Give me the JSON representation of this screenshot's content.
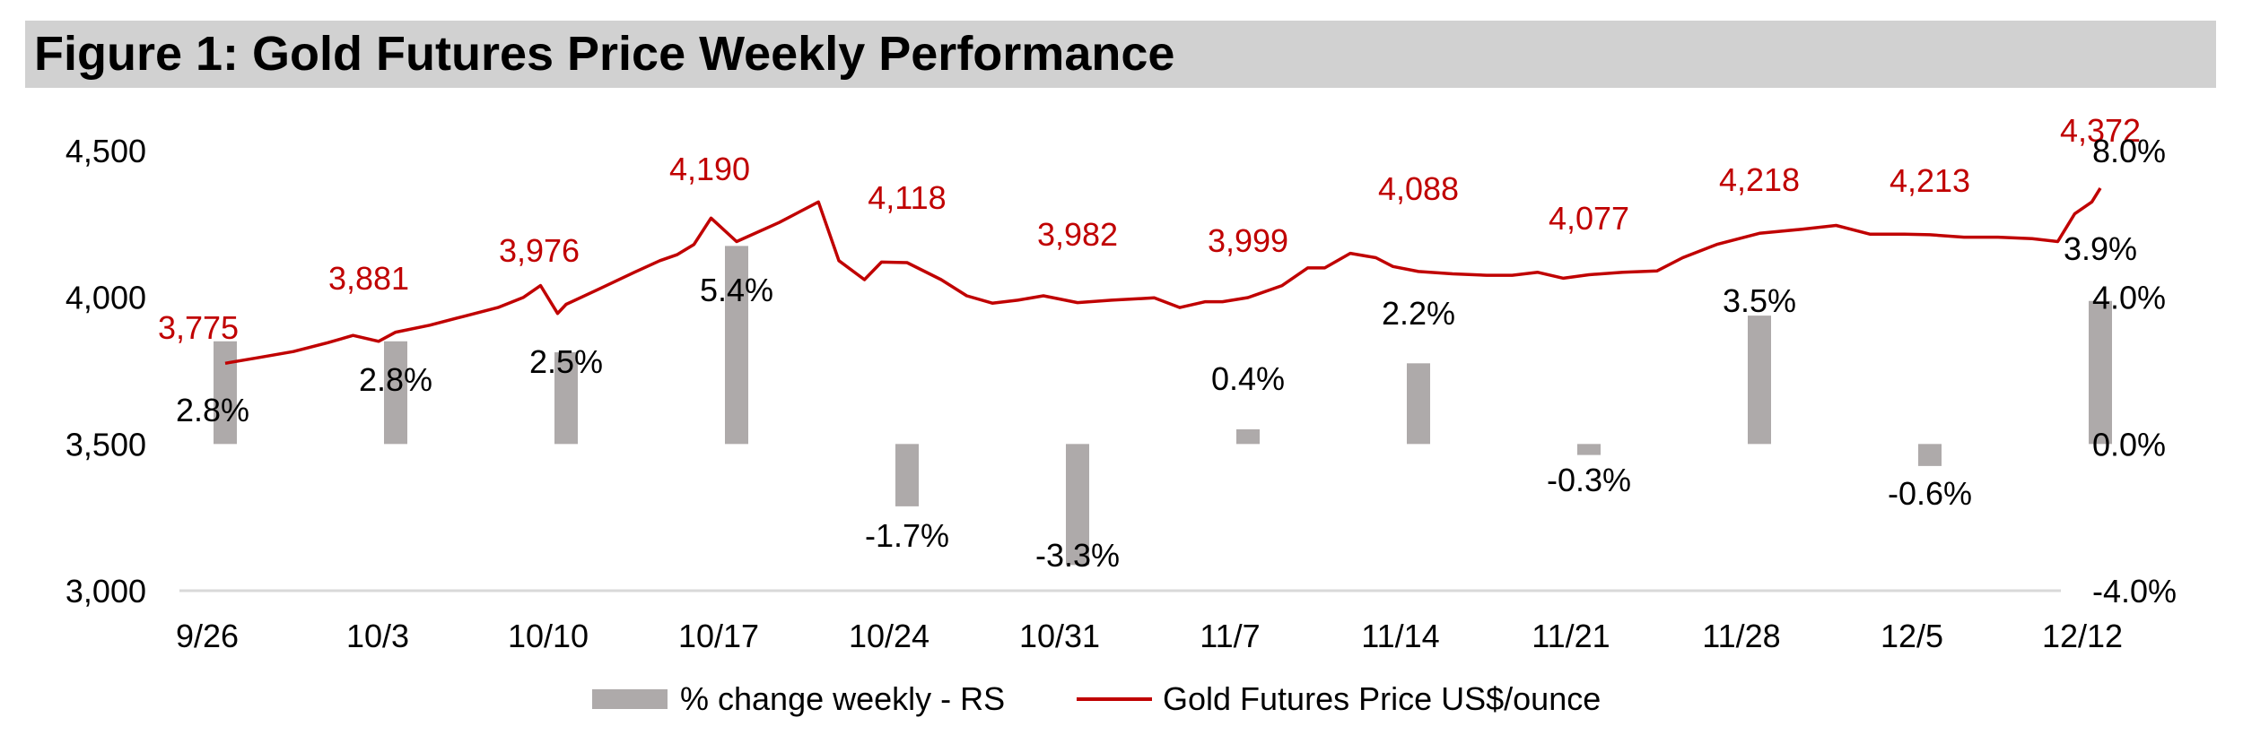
{
  "figure_title": "Figure 1: Gold Futures Price Weekly Performance",
  "chart_data": {
    "type": "bar+line",
    "categories": [
      "9/26",
      "10/3",
      "10/10",
      "10/17",
      "10/24",
      "10/31",
      "11/7",
      "11/14",
      "11/21",
      "11/28",
      "12/5",
      "12/12"
    ],
    "left_axis": {
      "ylim": [
        3000,
        4500
      ],
      "ticks": [
        3000,
        3500,
        4000,
        4500
      ],
      "tick_labels": [
        "3,000",
        "3,500",
        "4,000",
        "4,500"
      ]
    },
    "right_axis": {
      "ylim": [
        -4.0,
        8.0
      ],
      "ticks": [
        -4.0,
        0.0,
        4.0,
        8.0
      ],
      "tick_labels": [
        "-4.0%",
        "0.0%",
        "4.0%",
        "8.0%"
      ]
    },
    "series": [
      {
        "name": "% change weekly - RS",
        "kind": "bar",
        "axis": "right",
        "color": "#aeaaaa",
        "values": [
          2.8,
          2.8,
          2.5,
          5.4,
          -1.7,
          -3.3,
          0.4,
          2.2,
          -0.3,
          3.5,
          -0.6,
          3.9
        ],
        "labels": [
          "2.8%",
          "2.8%",
          "2.5%",
          "5.4%",
          "-1.7%",
          "-3.3%",
          "0.4%",
          "2.2%",
          "-0.3%",
          "3.5%",
          "-0.6%",
          "3.9%"
        ]
      },
      {
        "name": "Gold Futures Price US$/ounce",
        "kind": "line",
        "axis": "left",
        "color": "#c00000",
        "weekly_values": [
          3775,
          3881,
          3976,
          4190,
          4118,
          3982,
          3999,
          4088,
          4077,
          4218,
          4213,
          4372
        ],
        "weekly_labels": [
          "3,775",
          "3,881",
          "3,976",
          "4,190",
          "4,118",
          "3,982",
          "3,999",
          "4,088",
          "4,077",
          "4,218",
          "4,213",
          "4,372"
        ],
        "daily": [
          [
            0,
            3775
          ],
          [
            0.2,
            3795
          ],
          [
            0.4,
            3815
          ],
          [
            0.6,
            3845
          ],
          [
            0.75,
            3870
          ],
          [
            0.9,
            3850
          ],
          [
            1.0,
            3881
          ],
          [
            1.2,
            3905
          ],
          [
            1.4,
            3935
          ],
          [
            1.6,
            3965
          ],
          [
            1.75,
            4000
          ],
          [
            1.85,
            4040
          ],
          [
            1.95,
            3945
          ],
          [
            2.0,
            3976
          ],
          [
            2.2,
            4030
          ],
          [
            2.4,
            4085
          ],
          [
            2.55,
            4125
          ],
          [
            2.65,
            4145
          ],
          [
            2.75,
            4180
          ],
          [
            2.85,
            4270
          ],
          [
            3.0,
            4190
          ],
          [
            3.25,
            4255
          ],
          [
            3.48,
            4325
          ],
          [
            3.6,
            4125
          ],
          [
            3.75,
            4060
          ],
          [
            3.85,
            4120
          ],
          [
            4.0,
            4118
          ],
          [
            4.2,
            4060
          ],
          [
            4.35,
            4005
          ],
          [
            4.5,
            3980
          ],
          [
            4.65,
            3990
          ],
          [
            4.8,
            4005
          ],
          [
            5.0,
            3982
          ],
          [
            5.2,
            3990
          ],
          [
            5.45,
            3998
          ],
          [
            5.6,
            3965
          ],
          [
            5.75,
            3985
          ],
          [
            5.85,
            3985
          ],
          [
            6.0,
            3999
          ],
          [
            6.2,
            4040
          ],
          [
            6.35,
            4100
          ],
          [
            6.45,
            4100
          ],
          [
            6.6,
            4150
          ],
          [
            6.75,
            4135
          ],
          [
            6.85,
            4105
          ],
          [
            7.0,
            4088
          ],
          [
            7.2,
            4080
          ],
          [
            7.4,
            4075
          ],
          [
            7.55,
            4075
          ],
          [
            7.7,
            4085
          ],
          [
            7.85,
            4065
          ],
          [
            8.0,
            4077
          ],
          [
            8.2,
            4085
          ],
          [
            8.4,
            4090
          ],
          [
            8.55,
            4135
          ],
          [
            8.75,
            4180
          ],
          [
            9.0,
            4218
          ],
          [
            9.25,
            4232
          ],
          [
            9.45,
            4245
          ],
          [
            9.65,
            4215
          ],
          [
            9.85,
            4215
          ],
          [
            10.0,
            4213
          ],
          [
            10.2,
            4205
          ],
          [
            10.4,
            4205
          ],
          [
            10.6,
            4200
          ],
          [
            10.75,
            4190
          ],
          [
            10.85,
            4285
          ],
          [
            10.95,
            4325
          ],
          [
            11.0,
            4372
          ]
        ]
      }
    ],
    "legend": {
      "position": "bottom-center",
      "entries": [
        "% change weekly - RS",
        "Gold Futures Price US$/ounce"
      ]
    },
    "grid": false
  }
}
